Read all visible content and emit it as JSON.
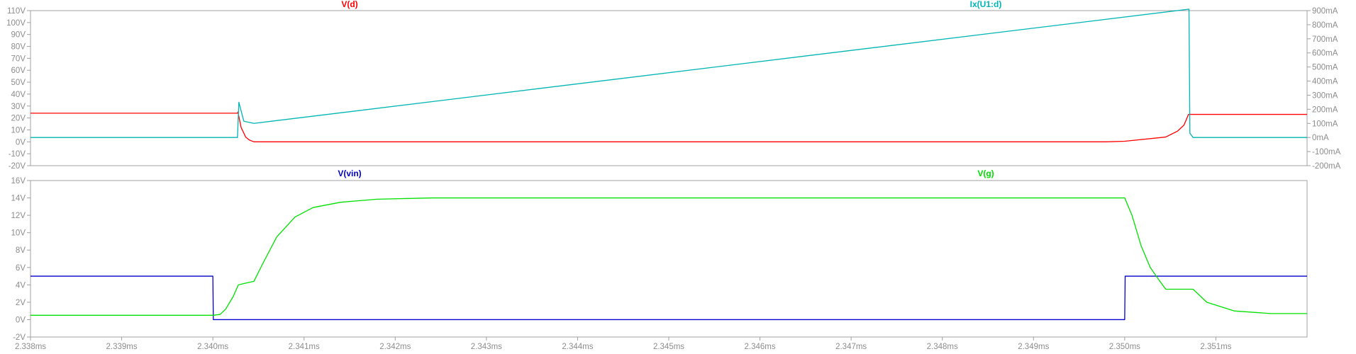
{
  "chart_data": [
    {
      "type": "line",
      "x_unit": "ms",
      "xlim": [
        2.338,
        2.352
      ],
      "y_left": {
        "ticks": [
          "110V",
          "100V",
          "90V",
          "80V",
          "70V",
          "60V",
          "50V",
          "40V",
          "30V",
          "20V",
          "10V",
          "0V",
          "-10V",
          "-20V"
        ],
        "ylim": [
          -20,
          110
        ],
        "unit": "V"
      },
      "y_right": {
        "ticks": [
          "900mA",
          "800mA",
          "700mA",
          "600mA",
          "500mA",
          "400mA",
          "300mA",
          "200mA",
          "100mA",
          "0mA",
          "-100mA",
          "-200mA"
        ],
        "ylim": [
          -200,
          900
        ],
        "unit": "mA"
      },
      "grid": false,
      "series": [
        {
          "name": "V(d)",
          "color": "#ff0000",
          "axis": "left",
          "points": [
            [
              2.338,
              24
            ],
            [
              2.34027,
              24
            ],
            [
              2.340275,
              25
            ],
            [
              2.34031,
              12
            ],
            [
              2.34036,
              4
            ],
            [
              2.3404,
              1.5
            ],
            [
              2.34045,
              0
            ],
            [
              2.3498,
              0
            ],
            [
              2.35,
              0.5
            ],
            [
              2.35045,
              4
            ],
            [
              2.35058,
              9
            ],
            [
              2.35065,
              14
            ],
            [
              2.3507,
              23
            ],
            [
              2.352,
              23
            ]
          ]
        },
        {
          "name": "Ix(U1:d)",
          "color": "#00b4b4",
          "axis": "right",
          "points": [
            [
              2.338,
              0
            ],
            [
              2.34027,
              0
            ],
            [
              2.340285,
              250
            ],
            [
              2.34034,
              115
            ],
            [
              2.34045,
              100
            ],
            [
              2.3507,
              910
            ],
            [
              2.350705,
              910
            ],
            [
              2.350715,
              30
            ],
            [
              2.35075,
              0
            ],
            [
              2.352,
              0
            ]
          ]
        }
      ]
    },
    {
      "type": "line",
      "x_unit": "ms",
      "xlim": [
        2.338,
        2.352
      ],
      "x_ticks": [
        "2.338ms",
        "2.339ms",
        "2.340ms",
        "2.341ms",
        "2.342ms",
        "2.343ms",
        "2.344ms",
        "2.345ms",
        "2.346ms",
        "2.347ms",
        "2.348ms",
        "2.349ms",
        "2.350ms",
        "2.351ms"
      ],
      "y_left": {
        "ticks": [
          "16V",
          "14V",
          "12V",
          "10V",
          "8V",
          "6V",
          "4V",
          "2V",
          "0V",
          "-2V"
        ],
        "ylim": [
          -2,
          16
        ],
        "unit": "V"
      },
      "grid": false,
      "series": [
        {
          "name": "V(vin)",
          "color": "#0000cc",
          "axis": "left",
          "points": [
            [
              2.338,
              5
            ],
            [
              2.34,
              5
            ],
            [
              2.340005,
              0
            ],
            [
              2.35,
              0
            ],
            [
              2.350005,
              5
            ],
            [
              2.352,
              5
            ]
          ]
        },
        {
          "name": "V(g)",
          "color": "#00e000",
          "axis": "left",
          "points": [
            [
              2.338,
              0.5
            ],
            [
              2.34,
              0.5
            ],
            [
              2.34008,
              0.6
            ],
            [
              2.34014,
              1.2
            ],
            [
              2.34022,
              2.6
            ],
            [
              2.34028,
              4
            ],
            [
              2.34036,
              4.2
            ],
            [
              2.34045,
              4.4
            ],
            [
              2.34055,
              6.5
            ],
            [
              2.3407,
              9.5
            ],
            [
              2.3409,
              11.8
            ],
            [
              2.3411,
              12.9
            ],
            [
              2.3414,
              13.5
            ],
            [
              2.3418,
              13.85
            ],
            [
              2.3424,
              14
            ],
            [
              2.35,
              14
            ],
            [
              2.35008,
              12
            ],
            [
              2.35018,
              8.5
            ],
            [
              2.35028,
              6
            ],
            [
              2.35038,
              4.5
            ],
            [
              2.35045,
              3.5
            ],
            [
              2.35075,
              3.5
            ],
            [
              2.3509,
              2
            ],
            [
              2.3512,
              1
            ],
            [
              2.3516,
              0.7
            ],
            [
              2.352,
              0.7
            ]
          ]
        }
      ]
    }
  ]
}
